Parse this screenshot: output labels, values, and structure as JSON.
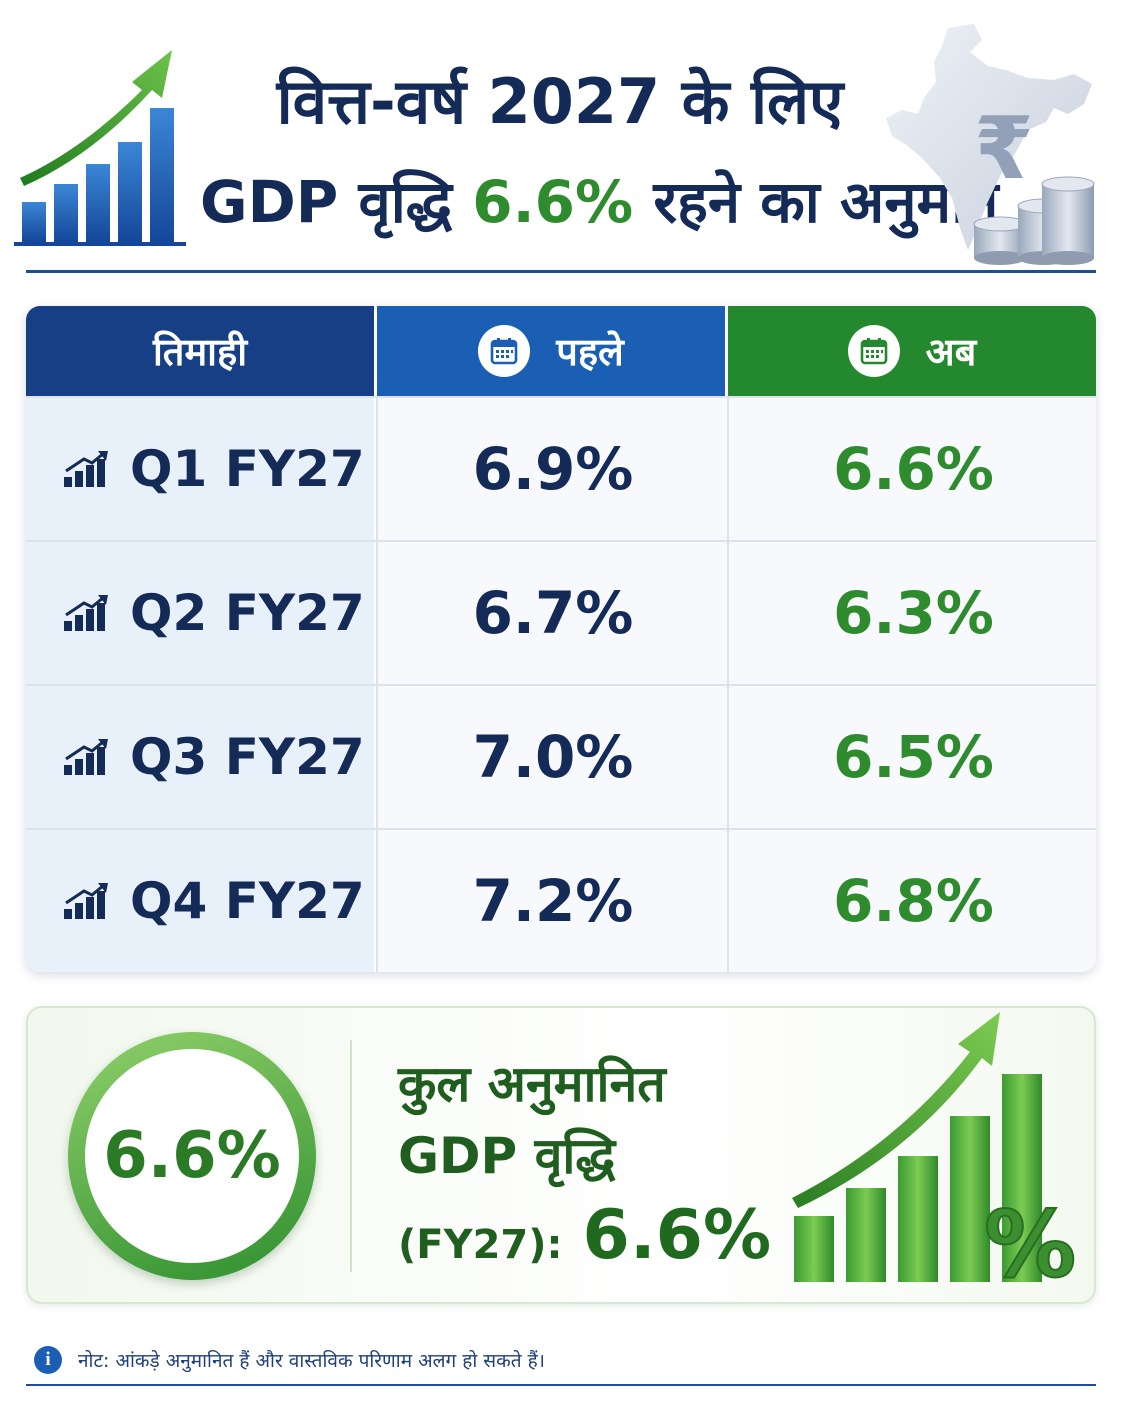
{
  "header": {
    "title_line1": "वित्त-वर्ष 2027 के लिए",
    "title_line2_prefix": "GDP वृद्धि",
    "title_line2_value": "6.6%",
    "title_line2_suffix": "रहने का अनुमान",
    "icons": [
      "growth-chart-icon",
      "india-map-icon",
      "rupee-icon",
      "coin-stack-icon"
    ]
  },
  "table": {
    "headers": {
      "quarter": "तिमाही",
      "before": "पहले",
      "after": "अब"
    },
    "header_icon": "calendar-icon",
    "row_icon": "bar-chart-icon",
    "rows": [
      {
        "quarter": "Q1 FY27",
        "before": "6.9%",
        "after": "6.6%"
      },
      {
        "quarter": "Q2 FY27",
        "before": "6.7%",
        "after": "6.3%"
      },
      {
        "quarter": "Q3 FY27",
        "before": "7.0%",
        "after": "6.5%"
      },
      {
        "quarter": "Q4 FY27",
        "before": "7.2%",
        "after": "6.8%"
      }
    ]
  },
  "summary": {
    "ring_value": "6.6%",
    "line1": "कुल अनुमानित",
    "line2": "GDP वृद्धि",
    "line3_label": "(FY27):",
    "line3_value": "6.6%",
    "art_icon": "growth-bars-percent-icon"
  },
  "note": {
    "icon": "info-icon",
    "icon_glyph": "i",
    "text": "नोट: आंकड़े अनुमानित हैं और वास्तविक परिणाम अलग हो सकते हैं।"
  },
  "colors": {
    "navy": "#142a57",
    "blue_header": "#1a5fb4",
    "dark_blue_header": "#173f86",
    "green": "#2e8b2e",
    "green_header": "#24882f"
  }
}
